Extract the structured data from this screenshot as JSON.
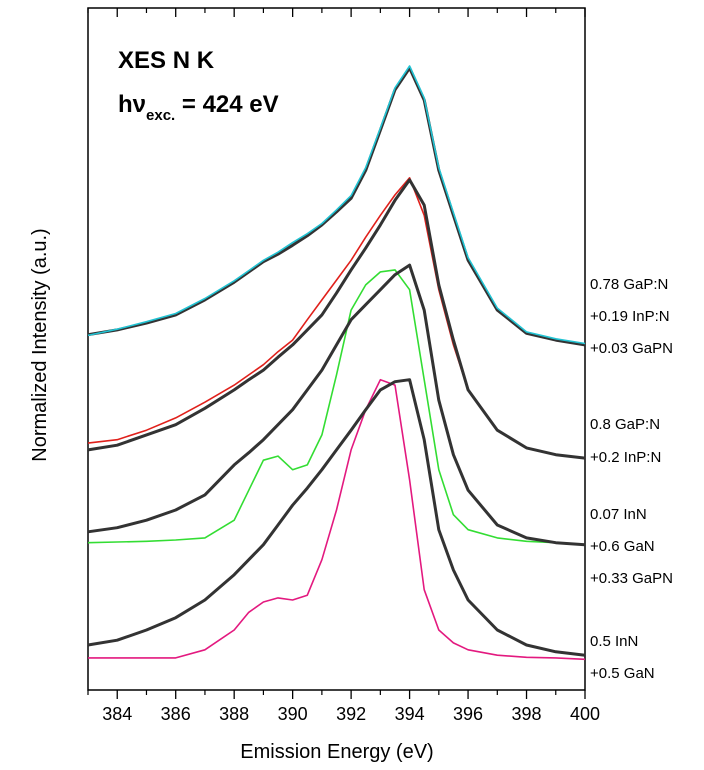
{
  "chart_data": {
    "type": "line",
    "annotation": {
      "line1": "XES N K",
      "line2": {
        "main": "hν",
        "sub": "exc.",
        "rest": " = 424 eV"
      }
    },
    "xlabel": "Emission Energy (eV)",
    "ylabel": "Normalized Intensity (a.u.)",
    "xlim": [
      383,
      400
    ],
    "ylim": [
      0,
      100
    ],
    "xticks": [
      384,
      386,
      388,
      390,
      392,
      394,
      396,
      398,
      400
    ],
    "xminorticks": [
      383,
      385,
      387,
      389,
      391,
      393,
      395,
      397,
      399
    ],
    "x": [
      383,
      384,
      385,
      386,
      387,
      388,
      388.5,
      389,
      389.5,
      390,
      390.5,
      391,
      391.5,
      392,
      392.5,
      393,
      393.5,
      394,
      394.5,
      395,
      395.5,
      396,
      397,
      398,
      399,
      400
    ],
    "series": [
      {
        "color": "#333333",
        "values": [
          52.1,
          52.8,
          53.8,
          55.0,
          57.2,
          59.8,
          61.3,
          62.8,
          63.9,
          65.2,
          66.6,
          68.2,
          70.1,
          72.1,
          76.2,
          82.1,
          88.0,
          91.2,
          86.5,
          76.2,
          69.6,
          63.0,
          55.7,
          52.3,
          51.3,
          50.6
        ]
      },
      {
        "color": "#22c3d3",
        "values": [
          52.0,
          52.9,
          54.0,
          55.2,
          57.4,
          60.0,
          61.5,
          63.0,
          64.2,
          65.6,
          66.9,
          68.4,
          70.4,
          72.5,
          76.6,
          82.4,
          88.3,
          91.5,
          86.8,
          76.6,
          70.0,
          63.4,
          56.0,
          52.5,
          51.5,
          50.8
        ]
      },
      {
        "color": "#e0201b",
        "values": [
          36.2,
          36.7,
          38.1,
          39.9,
          42.2,
          44.7,
          46.2,
          47.7,
          49.6,
          51.3,
          54.3,
          57.2,
          60.1,
          63.0,
          66.4,
          69.6,
          72.6,
          75.1,
          69.6,
          58.7,
          50.6,
          44.0,
          38.1,
          35.5,
          34.5,
          34.0
        ]
      },
      {
        "color": "#333333",
        "values": [
          35.2,
          35.9,
          37.4,
          38.9,
          41.3,
          44.0,
          45.5,
          46.9,
          48.8,
          50.6,
          52.8,
          55.0,
          58.2,
          61.6,
          64.8,
          68.2,
          71.8,
          74.8,
          71.1,
          59.4,
          51.3,
          44.0,
          38.1,
          35.5,
          34.5,
          34.0
        ]
      },
      {
        "color": "#33dd33",
        "values": [
          21.6,
          21.7,
          21.8,
          22.0,
          22.3,
          24.9,
          29.3,
          33.7,
          34.3,
          32.3,
          33.0,
          37.4,
          46.2,
          55.7,
          59.4,
          61.3,
          61.6,
          58.7,
          45.5,
          32.3,
          25.7,
          23.5,
          22.3,
          21.8,
          21.6,
          21.3
        ]
      },
      {
        "color": "#333333",
        "values": [
          23.2,
          23.8,
          24.9,
          26.4,
          28.6,
          33.0,
          34.8,
          36.7,
          38.9,
          41.1,
          44.0,
          46.9,
          50.6,
          54.3,
          56.5,
          58.7,
          60.9,
          62.3,
          55.7,
          42.5,
          34.5,
          29.3,
          24.2,
          22.3,
          21.6,
          21.3
        ]
      },
      {
        "color": "#e3197f",
        "values": [
          4.7,
          4.7,
          4.7,
          4.7,
          5.9,
          8.8,
          11.4,
          12.9,
          13.5,
          13.2,
          13.9,
          19.1,
          26.4,
          35.2,
          41.1,
          45.5,
          44.7,
          30.8,
          14.7,
          8.8,
          6.9,
          5.9,
          5.1,
          4.8,
          4.7,
          4.5
        ]
      },
      {
        "color": "#333333",
        "values": [
          6.6,
          7.3,
          8.8,
          10.6,
          13.2,
          16.9,
          19.1,
          21.3,
          24.2,
          27.1,
          29.6,
          32.3,
          35.2,
          38.1,
          41.1,
          44.0,
          45.2,
          45.5,
          36.7,
          23.5,
          17.6,
          13.2,
          8.8,
          6.6,
          5.6,
          5.1
        ]
      }
    ],
    "side_labels": [
      [
        "0.78 GaP:N",
        "+0.19 InP:N",
        "+0.03 GaPN"
      ],
      [
        "0.8 GaP:N",
        "+0.2 InP:N"
      ],
      [
        "0.07 InN",
        "+0.6 GaN",
        "+0.33 GaPN"
      ],
      [
        "0.5 InN",
        "+0.5 GaN"
      ]
    ]
  }
}
